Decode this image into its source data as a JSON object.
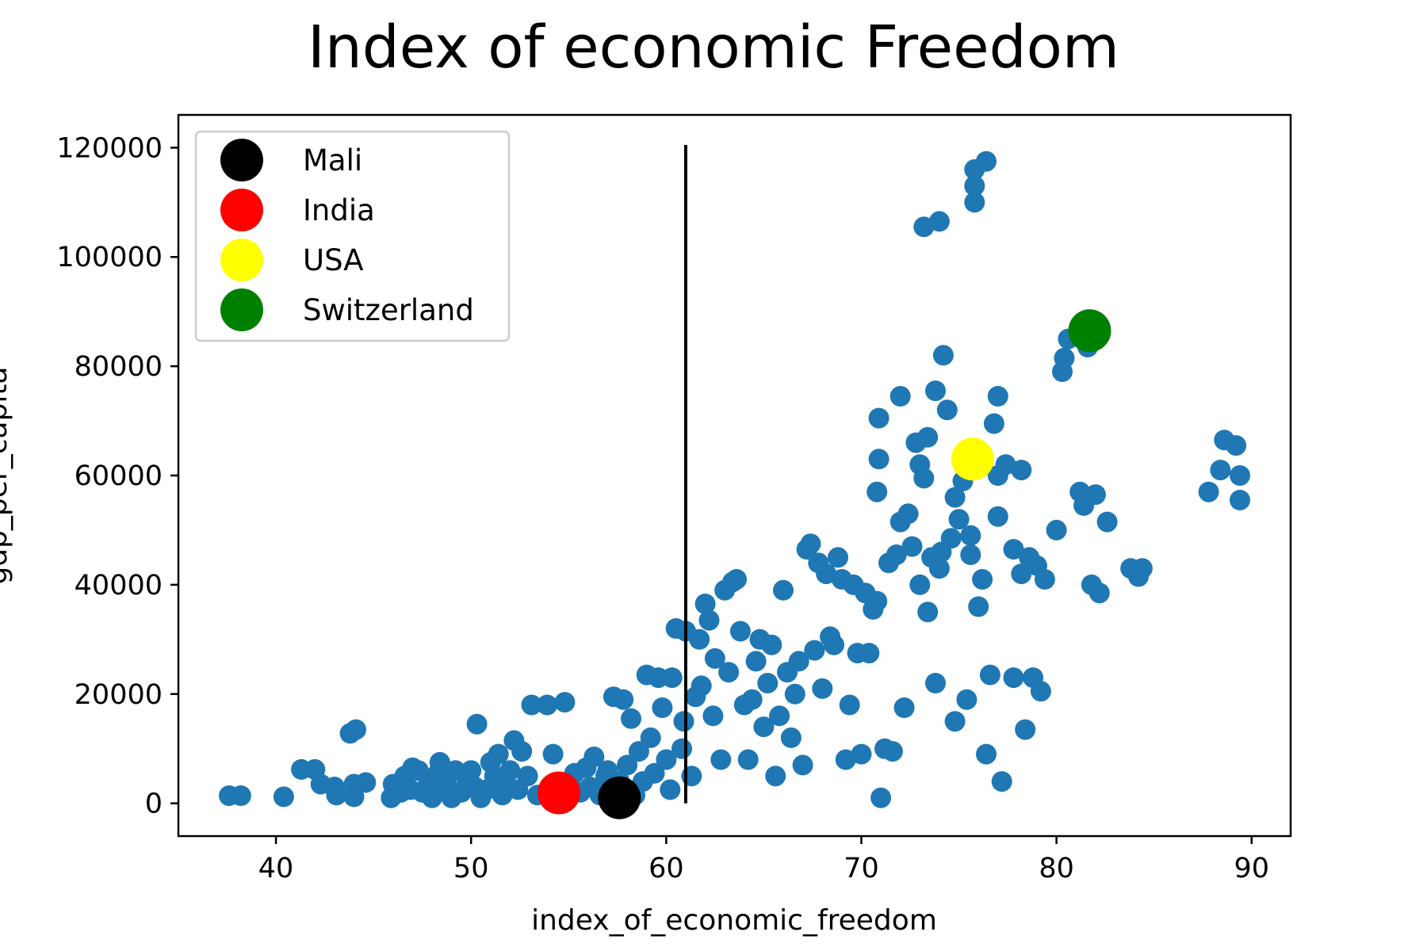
{
  "chart_data": {
    "type": "scatter",
    "title": "Index of economic Freedom",
    "xlabel": "index_of_economic_freedom",
    "ylabel": "gdp_per_capita",
    "xlim": [
      35,
      92
    ],
    "ylim": [
      -6000,
      126000
    ],
    "x_ticks": [
      "40",
      "50",
      "60",
      "70",
      "80",
      "90"
    ],
    "y_ticks": [
      "0",
      "20000",
      "40000",
      "60000",
      "80000",
      "100000",
      "120000"
    ],
    "grid": false,
    "legend_position": "upper-left",
    "vline": {
      "x": 61,
      "y_start": 0,
      "y_end": 120500,
      "color": "#000000"
    },
    "series_color": "#1f77b4",
    "points": [
      [
        37.6,
        1400
      ],
      [
        38.2,
        1400
      ],
      [
        40.4,
        1200
      ],
      [
        41.3,
        6200
      ],
      [
        42.0,
        6200
      ],
      [
        42.3,
        3500
      ],
      [
        43.0,
        3000
      ],
      [
        43.1,
        1500
      ],
      [
        43.8,
        12800
      ],
      [
        44.1,
        13500
      ],
      [
        44.0,
        3500
      ],
      [
        44.0,
        1200
      ],
      [
        44.6,
        3800
      ],
      [
        45.9,
        1000
      ],
      [
        46.0,
        3500
      ],
      [
        46.4,
        2000
      ],
      [
        46.6,
        5000
      ],
      [
        46.9,
        2500
      ],
      [
        47.0,
        6500
      ],
      [
        47.3,
        6000
      ],
      [
        47.5,
        2000
      ],
      [
        47.8,
        3500
      ],
      [
        48.0,
        1000
      ],
      [
        48.3,
        5500
      ],
      [
        48.4,
        7500
      ],
      [
        48.8,
        3000
      ],
      [
        49.0,
        1000
      ],
      [
        49.2,
        6000
      ],
      [
        49.5,
        2000
      ],
      [
        49.8,
        4000
      ],
      [
        50.0,
        6000
      ],
      [
        50.2,
        3000
      ],
      [
        50.3,
        14500
      ],
      [
        50.5,
        1000
      ],
      [
        50.8,
        2500
      ],
      [
        51.0,
        7500
      ],
      [
        51.2,
        5000
      ],
      [
        51.4,
        9000
      ],
      [
        51.6,
        1500
      ],
      [
        51.8,
        3000
      ],
      [
        52.0,
        6000
      ],
      [
        52.2,
        11500
      ],
      [
        52.4,
        2500
      ],
      [
        52.6,
        9500
      ],
      [
        52.9,
        5000
      ],
      [
        53.1,
        18000
      ],
      [
        53.4,
        1500
      ],
      [
        53.9,
        18000
      ],
      [
        54.2,
        9000
      ],
      [
        54.5,
        3500
      ],
      [
        54.8,
        18500
      ],
      [
        55.0,
        1500
      ],
      [
        55.3,
        5500
      ],
      [
        55.6,
        2000
      ],
      [
        55.9,
        6500
      ],
      [
        56.1,
        3000
      ],
      [
        56.3,
        8500
      ],
      [
        56.6,
        1500
      ],
      [
        56.9,
        5000
      ],
      [
        57.0,
        6000
      ],
      [
        57.3,
        2000
      ],
      [
        57.3,
        19500
      ],
      [
        57.6,
        4000
      ],
      [
        57.8,
        19000
      ],
      [
        58.0,
        7000
      ],
      [
        58.2,
        15500
      ],
      [
        58.4,
        1500
      ],
      [
        58.6,
        9500
      ],
      [
        58.8,
        4000
      ],
      [
        59.0,
        23500
      ],
      [
        59.2,
        12000
      ],
      [
        59.4,
        5500
      ],
      [
        59.6,
        23000
      ],
      [
        59.8,
        17500
      ],
      [
        60.0,
        8000
      ],
      [
        60.2,
        2500
      ],
      [
        60.3,
        23000
      ],
      [
        60.5,
        32000
      ],
      [
        60.8,
        10000
      ],
      [
        60.9,
        15000
      ],
      [
        61.0,
        31500
      ],
      [
        61.3,
        5000
      ],
      [
        61.5,
        19500
      ],
      [
        61.7,
        30000
      ],
      [
        61.8,
        21500
      ],
      [
        62.0,
        36500
      ],
      [
        62.2,
        33500
      ],
      [
        62.4,
        16000
      ],
      [
        62.5,
        26500
      ],
      [
        62.8,
        8000
      ],
      [
        63.0,
        39000
      ],
      [
        63.2,
        24000
      ],
      [
        63.4,
        40500
      ],
      [
        63.6,
        41000
      ],
      [
        63.8,
        31500
      ],
      [
        64.0,
        18000
      ],
      [
        64.2,
        8000
      ],
      [
        64.4,
        19000
      ],
      [
        64.6,
        26000
      ],
      [
        64.8,
        30000
      ],
      [
        65.0,
        14000
      ],
      [
        65.2,
        22000
      ],
      [
        65.4,
        29000
      ],
      [
        65.6,
        5000
      ],
      [
        65.8,
        16000
      ],
      [
        66.0,
        39000
      ],
      [
        66.2,
        24000
      ],
      [
        66.4,
        12000
      ],
      [
        66.6,
        20000
      ],
      [
        66.8,
        26000
      ],
      [
        67.0,
        7000
      ],
      [
        67.2,
        46500
      ],
      [
        67.4,
        47500
      ],
      [
        67.6,
        28000
      ],
      [
        67.8,
        44000
      ],
      [
        68.0,
        21000
      ],
      [
        68.2,
        42000
      ],
      [
        68.4,
        30500
      ],
      [
        68.6,
        29000
      ],
      [
        68.8,
        45000
      ],
      [
        69.0,
        41000
      ],
      [
        69.2,
        8000
      ],
      [
        69.4,
        18000
      ],
      [
        69.6,
        40000
      ],
      [
        69.8,
        27500
      ],
      [
        70.0,
        9000
      ],
      [
        70.2,
        38500
      ],
      [
        70.4,
        27500
      ],
      [
        70.6,
        35500
      ],
      [
        70.8,
        37000
      ],
      [
        70.8,
        57000
      ],
      [
        70.9,
        63000
      ],
      [
        70.9,
        70500
      ],
      [
        71.0,
        1000
      ],
      [
        71.2,
        10000
      ],
      [
        71.4,
        44000
      ],
      [
        71.6,
        9500
      ],
      [
        71.8,
        45500
      ],
      [
        72.0,
        74500
      ],
      [
        72.0,
        51500
      ],
      [
        72.2,
        17500
      ],
      [
        72.4,
        53000
      ],
      [
        72.6,
        47000
      ],
      [
        72.8,
        66000
      ],
      [
        73.0,
        62000
      ],
      [
        73.0,
        40000
      ],
      [
        73.2,
        59500
      ],
      [
        73.4,
        67000
      ],
      [
        73.4,
        35000
      ],
      [
        73.6,
        45000
      ],
      [
        73.8,
        22000
      ],
      [
        73.8,
        75500
      ],
      [
        74.0,
        43000
      ],
      [
        74.1,
        46000
      ],
      [
        74.2,
        82000
      ],
      [
        74.4,
        72000
      ],
      [
        74.6,
        48500
      ],
      [
        74.8,
        56000
      ],
      [
        74.8,
        15000
      ],
      [
        75.0,
        52000
      ],
      [
        75.2,
        59000
      ],
      [
        75.4,
        19000
      ],
      [
        75.6,
        45500
      ],
      [
        75.6,
        49000
      ],
      [
        75.8,
        110000
      ],
      [
        75.8,
        113000
      ],
      [
        75.8,
        116000
      ],
      [
        76.0,
        36000
      ],
      [
        76.2,
        41000
      ],
      [
        76.4,
        117500
      ],
      [
        76.4,
        9000
      ],
      [
        76.6,
        23500
      ],
      [
        76.8,
        69500
      ],
      [
        77.0,
        52500
      ],
      [
        77.0,
        60000
      ],
      [
        77.0,
        74500
      ],
      [
        77.2,
        4000
      ],
      [
        77.4,
        62000
      ],
      [
        77.8,
        23000
      ],
      [
        77.8,
        46500
      ],
      [
        78.2,
        42000
      ],
      [
        78.2,
        61000
      ],
      [
        78.4,
        13500
      ],
      [
        78.6,
        45000
      ],
      [
        78.8,
        23000
      ],
      [
        79.0,
        43500
      ],
      [
        79.2,
        20500
      ],
      [
        79.4,
        41000
      ],
      [
        73.2,
        105500
      ],
      [
        74.0,
        106500
      ],
      [
        80.0,
        50000
      ],
      [
        80.3,
        79000
      ],
      [
        80.4,
        81500
      ],
      [
        80.6,
        85000
      ],
      [
        81.2,
        57000
      ],
      [
        81.4,
        54500
      ],
      [
        81.5,
        84500
      ],
      [
        81.6,
        83500
      ],
      [
        81.8,
        40000
      ],
      [
        82.0,
        56500
      ],
      [
        82.2,
        38500
      ],
      [
        82.6,
        51500
      ],
      [
        83.8,
        43000
      ],
      [
        84.2,
        41500
      ],
      [
        84.4,
        43000
      ],
      [
        87.8,
        57000
      ],
      [
        88.4,
        61000
      ],
      [
        88.6,
        66500
      ],
      [
        89.2,
        65500
      ],
      [
        89.4,
        60000
      ],
      [
        89.4,
        55500
      ]
    ],
    "highlights": [
      {
        "name": "Mali",
        "x": 57.6,
        "y": 1000,
        "color": "#000000"
      },
      {
        "name": "India",
        "x": 54.5,
        "y": 1900,
        "color": "#ff0000"
      },
      {
        "name": "USA",
        "x": 75.7,
        "y": 63000,
        "color": "#ffff00"
      },
      {
        "name": "Switzerland",
        "x": 81.7,
        "y": 86500,
        "color": "#008000"
      }
    ]
  }
}
